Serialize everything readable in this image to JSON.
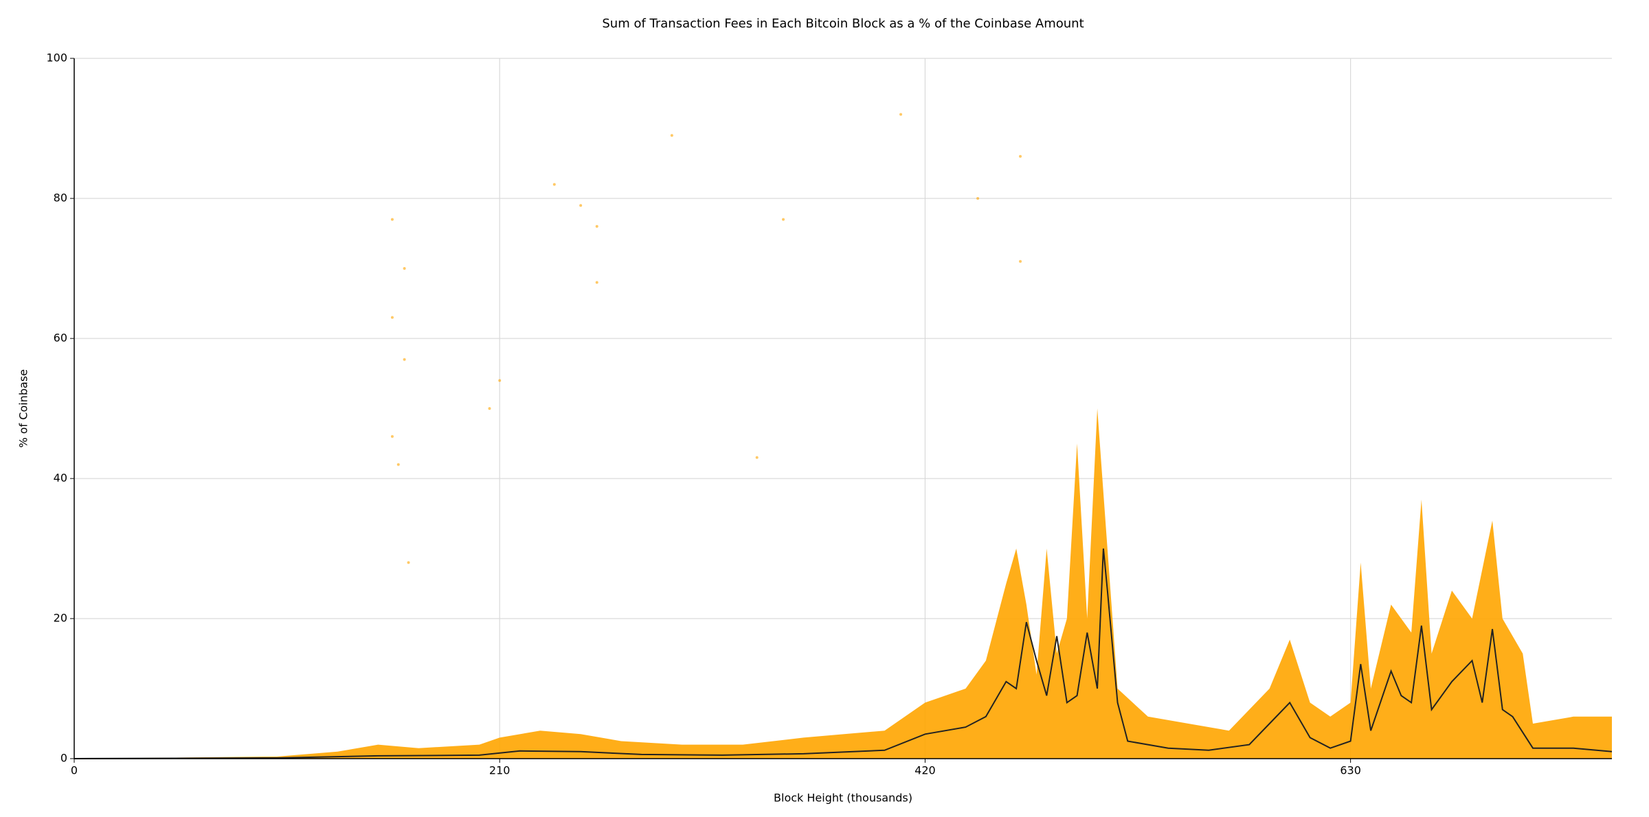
{
  "chart_data": {
    "type": "scatter",
    "title": "Sum of Transaction Fees in Each Bitcoin Block as a % of the Coinbase Amount",
    "x_label": "Block Height (thousands)",
    "y_label": "% of Coinbase",
    "xlim": [
      0,
      759
    ],
    "ylim": [
      0,
      100
    ],
    "xticks": [
      0,
      210,
      420,
      630
    ],
    "yticks": [
      0,
      20,
      40,
      60,
      80,
      100
    ],
    "grid": true,
    "series": [
      {
        "type": "area",
        "color": "#ffa500",
        "x": [
          0,
          100,
          130,
          150,
          170,
          200,
          210,
          230,
          250,
          270,
          300,
          330,
          360,
          380,
          400,
          420,
          440,
          450,
          460,
          465,
          470,
          475,
          480,
          485,
          490,
          495,
          500,
          505,
          510,
          515,
          530,
          550,
          570,
          590,
          600,
          610,
          620,
          630,
          635,
          640,
          650,
          660,
          665,
          670,
          680,
          690,
          700,
          705,
          715,
          720,
          740,
          759
        ],
        "values": [
          0,
          0.3,
          1,
          2,
          1.5,
          2,
          3,
          4,
          3.5,
          2.5,
          2,
          2,
          3,
          3.5,
          4,
          8,
          10,
          14,
          25,
          30,
          22,
          12,
          30,
          15,
          20,
          45,
          20,
          50,
          30,
          10,
          6,
          5,
          4,
          10,
          17,
          8,
          6,
          8,
          28,
          10,
          22,
          18,
          37,
          15,
          24,
          20,
          34,
          20,
          15,
          5,
          6,
          6
        ]
      },
      {
        "type": "scatter",
        "color": "#ffa500",
        "x": [
          157,
          157,
          163,
          163,
          157,
          160,
          165,
          237,
          250,
          295,
          258,
          258,
          408,
          446,
          467,
          467,
          350,
          210,
          205,
          337
        ],
        "values": [
          77,
          63,
          70,
          57,
          46,
          42,
          28,
          82,
          79,
          89,
          76,
          68,
          92,
          80,
          86,
          71,
          77,
          54,
          50,
          43
        ]
      },
      {
        "type": "line",
        "color": "#222222",
        "x": [
          0,
          100,
          150,
          200,
          220,
          250,
          280,
          320,
          360,
          400,
          420,
          440,
          450,
          460,
          465,
          470,
          475,
          480,
          485,
          490,
          495,
          500,
          505,
          508,
          510,
          515,
          520,
          540,
          560,
          580,
          590,
          600,
          610,
          620,
          630,
          635,
          640,
          650,
          655,
          660,
          665,
          670,
          680,
          690,
          695,
          700,
          705,
          710,
          720,
          740,
          759
        ],
        "values": [
          0,
          0.1,
          0.4,
          0.5,
          1.1,
          1,
          0.6,
          0.5,
          0.7,
          1.2,
          3.5,
          4.5,
          6,
          11,
          10,
          19.5,
          14,
          9,
          17.5,
          8,
          9,
          18,
          10,
          30,
          24,
          8,
          2.5,
          1.5,
          1.2,
          2,
          5,
          8,
          3,
          1.5,
          2.5,
          13.5,
          4,
          12.5,
          9,
          8,
          19,
          7,
          11,
          14,
          8,
          18.5,
          7,
          6,
          1.5,
          1.5,
          1
        ]
      }
    ]
  }
}
